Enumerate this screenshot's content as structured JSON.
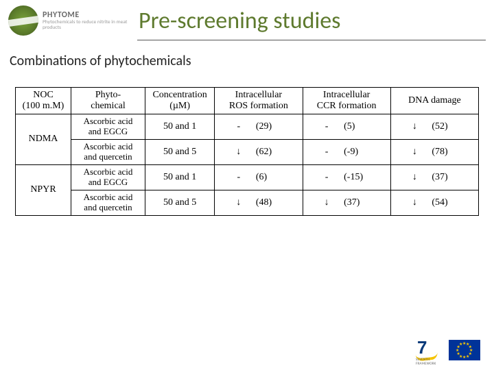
{
  "brand": {
    "name": "PHYTOME",
    "tagline": "Phytochemicals to reduce nitrite in meat products"
  },
  "title": "Pre-screening studies",
  "subtitle": "Combinations of phytochemicals",
  "table": {
    "columns": [
      "NOC (100 m.M)",
      "Phyto-chemical",
      "Concentration (µM)",
      "Intracellular ROS formation",
      "Intracellular CCR formation",
      "DNA damage"
    ],
    "col_widths_pct": [
      12,
      16,
      15,
      19,
      19,
      19
    ],
    "groups": [
      {
        "noc": "NDMA",
        "rows": [
          {
            "phyto": "Ascorbic acid and EGCG",
            "conc": "50 and 1",
            "ros": {
              "sym": "-",
              "pct": "(29)"
            },
            "ccr": {
              "sym": "-",
              "pct": "(5)"
            },
            "dna": {
              "sym": "↓",
              "pct": "(52)"
            }
          },
          {
            "phyto": "Ascorbic acid and quercetin",
            "conc": "50 and 5",
            "ros": {
              "sym": "↓",
              "pct": "(62)"
            },
            "ccr": {
              "sym": "-",
              "pct": "(-9)"
            },
            "dna": {
              "sym": "↓",
              "pct": "(78)"
            }
          }
        ]
      },
      {
        "noc": "NPYR",
        "rows": [
          {
            "phyto": "Ascorbic acid and EGCG",
            "conc": "50 and 1",
            "ros": {
              "sym": "-",
              "pct": "(6)"
            },
            "ccr": {
              "sym": "-",
              "pct": "(-15)"
            },
            "dna": {
              "sym": "↓",
              "pct": "(37)"
            }
          },
          {
            "phyto": "Ascorbic acid and quercetin",
            "conc": "50 and 5",
            "ros": {
              "sym": "↓",
              "pct": "(48)"
            },
            "ccr": {
              "sym": "↓",
              "pct": "(37)"
            },
            "dna": {
              "sym": "↓",
              "pct": "(54)"
            }
          }
        ]
      }
    ]
  },
  "footer": {
    "fp7_label": "7",
    "fp7_tag": "SEVENTH FRAMEWORK"
  },
  "colors": {
    "title": "#5e7a2e",
    "text": "#222222",
    "border": "#000000",
    "eu_blue": "#003399",
    "eu_gold": "#ffcc00"
  }
}
